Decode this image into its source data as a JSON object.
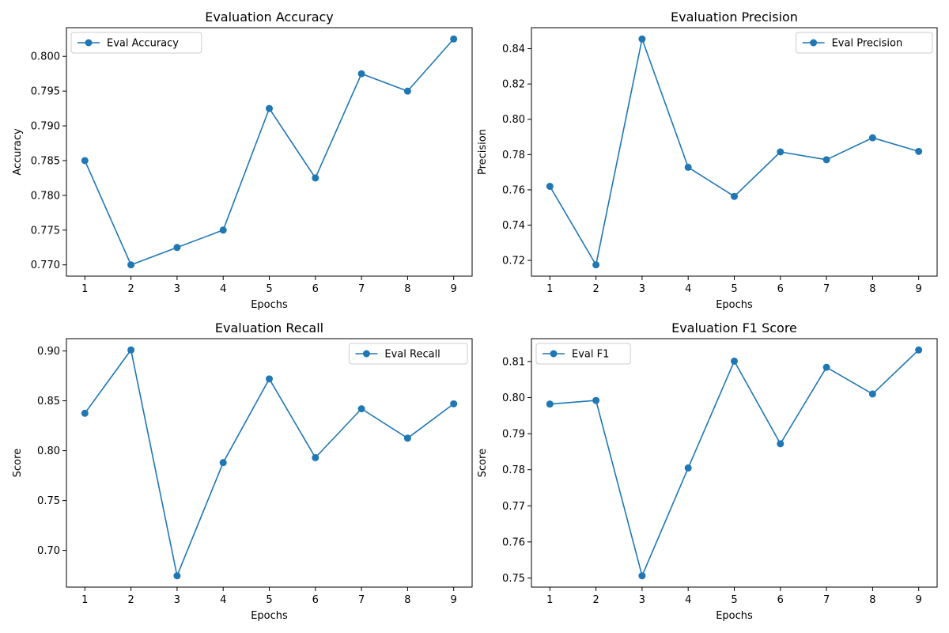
{
  "chart_data": [
    {
      "type": "line",
      "title": "Evaluation Accuracy",
      "xlabel": "Epochs",
      "ylabel": "Accuracy",
      "x": [
        1,
        2,
        3,
        4,
        5,
        6,
        7,
        8,
        9
      ],
      "yticks": [
        0.77,
        0.775,
        0.78,
        0.785,
        0.79,
        0.795,
        0.8
      ],
      "yticks_fmt": 3,
      "legend_position": "upper-left",
      "grid": false,
      "series": [
        {
          "name": "Eval Accuracy",
          "color": "#1f77b4",
          "marker": "circle",
          "values": [
            0.785,
            0.77,
            0.7725,
            0.775,
            0.7925,
            0.7825,
            0.7975,
            0.795,
            0.8025
          ]
        }
      ]
    },
    {
      "type": "line",
      "title": "Evaluation Precision",
      "xlabel": "Epochs",
      "ylabel": "Precision",
      "x": [
        1,
        2,
        3,
        4,
        5,
        6,
        7,
        8,
        9
      ],
      "yticks": [
        0.72,
        0.74,
        0.76,
        0.78,
        0.8,
        0.82,
        0.84
      ],
      "yticks_fmt": 2,
      "legend_position": "upper-right",
      "grid": false,
      "series": [
        {
          "name": "Eval Precision",
          "color": "#1f77b4",
          "marker": "circle",
          "values": [
            0.762,
            0.7175,
            0.8455,
            0.7728,
            0.7563,
            0.7815,
            0.7771,
            0.7895,
            0.7818
          ]
        }
      ]
    },
    {
      "type": "line",
      "title": "Evaluation Recall",
      "xlabel": "Epochs",
      "ylabel": "Score",
      "x": [
        1,
        2,
        3,
        4,
        5,
        6,
        7,
        8,
        9
      ],
      "yticks": [
        0.7,
        0.75,
        0.8,
        0.85,
        0.9
      ],
      "yticks_fmt": 2,
      "legend_position": "upper-right",
      "grid": false,
      "series": [
        {
          "name": "Eval Recall",
          "color": "#1f77b4",
          "marker": "circle",
          "values": [
            0.8375,
            0.901,
            0.6745,
            0.788,
            0.872,
            0.793,
            0.842,
            0.8125,
            0.847
          ]
        }
      ]
    },
    {
      "type": "line",
      "title": "Evaluation F1 Score",
      "xlabel": "Epochs",
      "ylabel": "Score",
      "x": [
        1,
        2,
        3,
        4,
        5,
        6,
        7,
        8,
        9
      ],
      "yticks": [
        0.75,
        0.76,
        0.77,
        0.78,
        0.79,
        0.8,
        0.81
      ],
      "yticks_fmt": 2,
      "legend_position": "upper-left",
      "grid": false,
      "series": [
        {
          "name": "Eval F1",
          "color": "#1f77b4",
          "marker": "circle",
          "values": [
            0.7982,
            0.7992,
            0.7506,
            0.7805,
            0.8101,
            0.7872,
            0.8084,
            0.801,
            0.8132
          ]
        }
      ]
    }
  ]
}
